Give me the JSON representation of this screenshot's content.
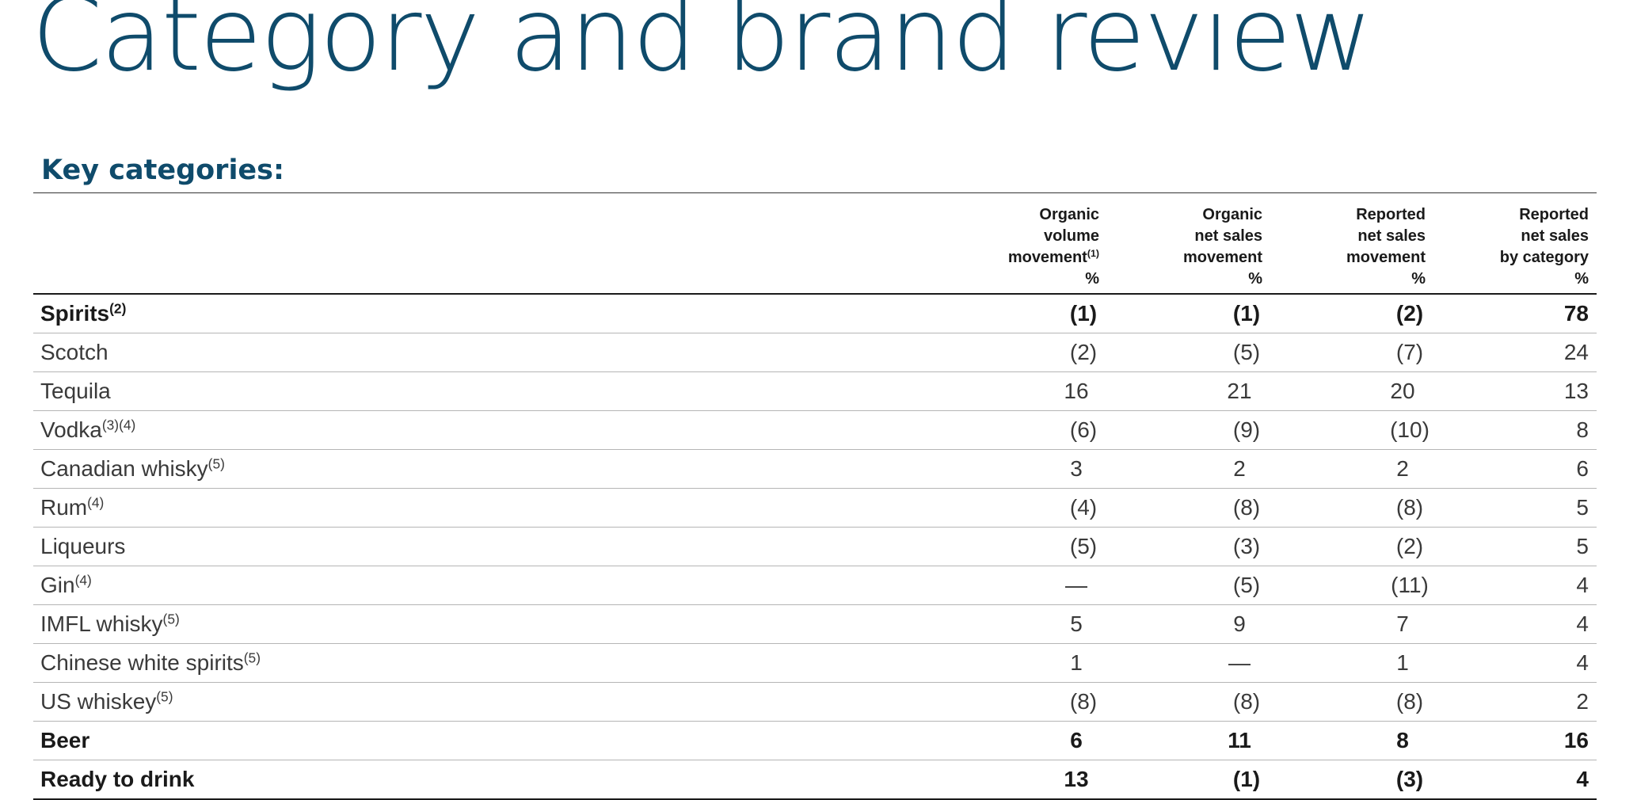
{
  "title": "Category and brand review",
  "section_heading": "Key categories:",
  "table": {
    "headers": [
      {
        "lines": [
          "Organic",
          "volume",
          "movement"
        ],
        "sup": "(1)",
        "unit": "%"
      },
      {
        "lines": [
          "Organic",
          "net sales",
          "movement"
        ],
        "sup": "",
        "unit": "%"
      },
      {
        "lines": [
          "Reported",
          "net sales",
          "movement"
        ],
        "sup": "",
        "unit": "%"
      },
      {
        "lines": [
          "Reported",
          "net sales",
          "by category"
        ],
        "sup": "",
        "unit": "%"
      }
    ],
    "rows": [
      {
        "label": "Spirits",
        "sup": "(2)",
        "bold": true,
        "values": [
          "(1)",
          "(1)",
          "(2)",
          "78"
        ]
      },
      {
        "label": "Scotch",
        "sup": "",
        "bold": false,
        "values": [
          "(2)",
          "(5)",
          "(7)",
          "24"
        ]
      },
      {
        "label": "Tequila",
        "sup": "",
        "bold": false,
        "values": [
          "16",
          "21",
          "20",
          "13"
        ]
      },
      {
        "label": "Vodka",
        "sup": "(3)(4)",
        "bold": false,
        "values": [
          "(6)",
          "(9)",
          "(10)",
          "8"
        ]
      },
      {
        "label": "Canadian whisky",
        "sup": "(5)",
        "bold": false,
        "values": [
          "3",
          "2",
          "2",
          "6"
        ]
      },
      {
        "label": "Rum",
        "sup": "(4)",
        "bold": false,
        "values": [
          "(4)",
          "(8)",
          "(8)",
          "5"
        ]
      },
      {
        "label": "Liqueurs",
        "sup": "",
        "bold": false,
        "values": [
          "(5)",
          "(3)",
          "(2)",
          "5"
        ]
      },
      {
        "label": "Gin",
        "sup": "(4)",
        "bold": false,
        "values": [
          "—",
          "(5)",
          "(11)",
          "4"
        ]
      },
      {
        "label": "IMFL whisky",
        "sup": "(5)",
        "bold": false,
        "values": [
          "5",
          "9",
          "7",
          "4"
        ]
      },
      {
        "label": "Chinese white spirits",
        "sup": "(5)",
        "bold": false,
        "values": [
          "1",
          "—",
          "1",
          "4"
        ]
      },
      {
        "label": "US whiskey",
        "sup": "(5)",
        "bold": false,
        "values": [
          "(8)",
          "(8)",
          "(8)",
          "2"
        ]
      },
      {
        "label": "Beer",
        "sup": "",
        "bold": true,
        "values": [
          "6",
          "11",
          "8",
          "16"
        ]
      },
      {
        "label": "Ready to drink",
        "sup": "",
        "bold": true,
        "values": [
          "13",
          "(1)",
          "(3)",
          "4"
        ]
      }
    ]
  },
  "colors": {
    "title": "#0f4b6b",
    "text": "#1a1a1a",
    "body_text": "#3a3a3a",
    "rule": "#b5b5b5"
  }
}
